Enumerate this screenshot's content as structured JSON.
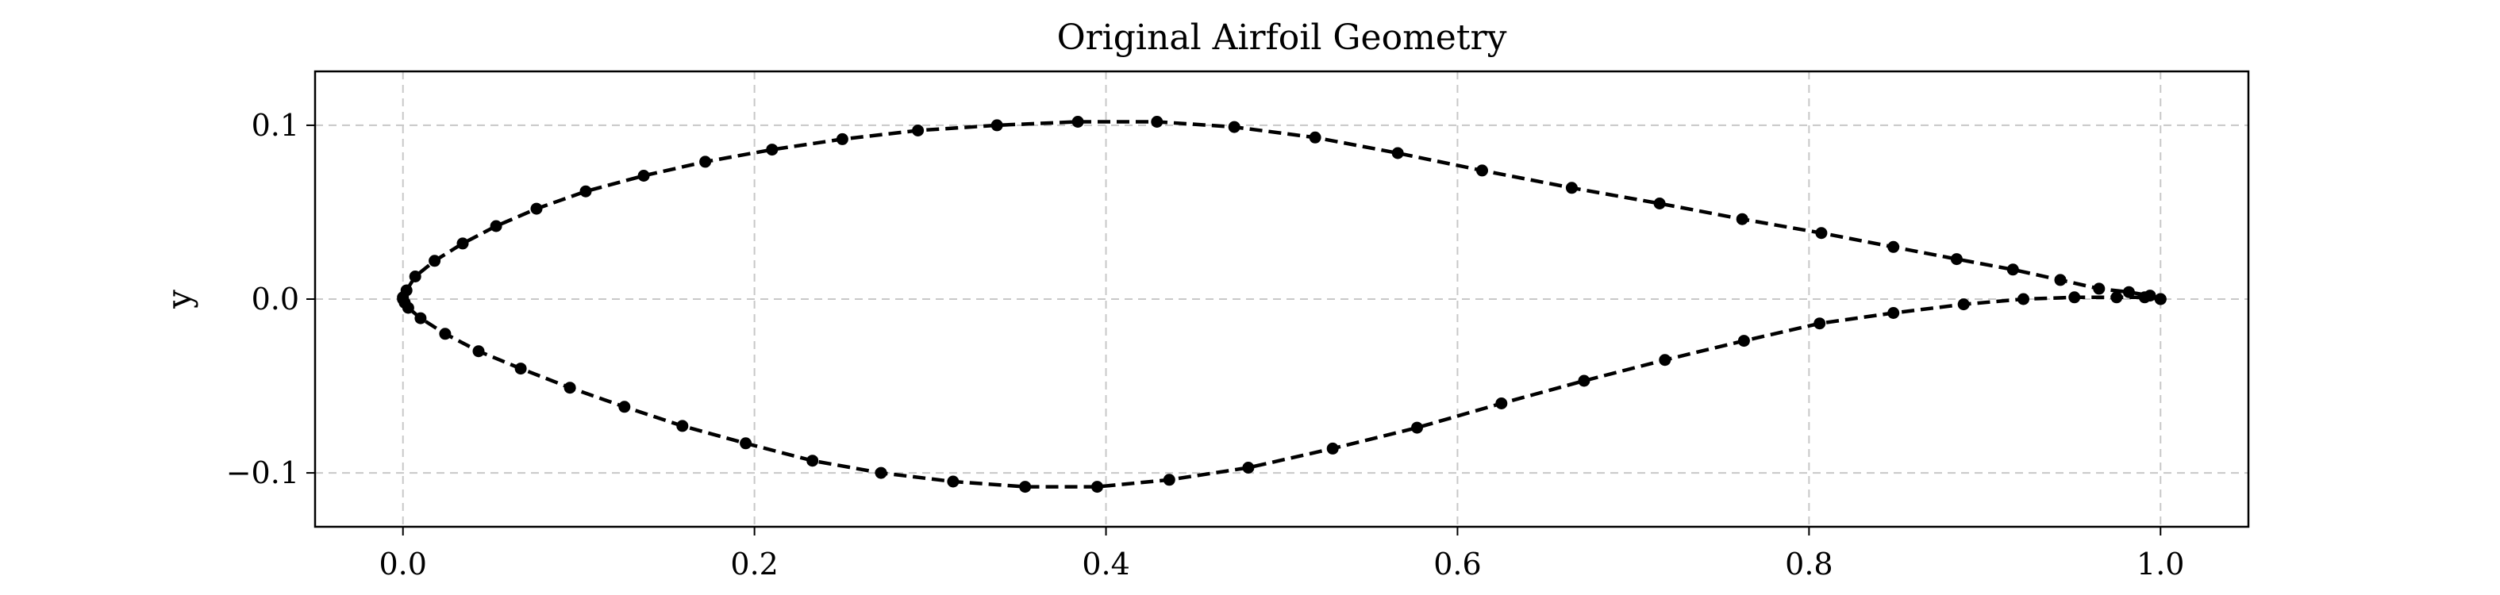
{
  "chart_data": {
    "type": "line",
    "title": "Original Airfoil Geometry",
    "xlabel": "",
    "ylabel": "y",
    "xlim": [
      -0.05,
      1.05
    ],
    "ylim": [
      -0.131,
      0.131
    ],
    "xticks": [
      0.0,
      0.2,
      0.4,
      0.6,
      0.8,
      1.0
    ],
    "xtick_labels": [
      "0.0",
      "0.2",
      "0.4",
      "0.6",
      "0.8",
      "1.0"
    ],
    "yticks": [
      -0.1,
      0.0,
      0.1
    ],
    "ytick_labels": [
      "−0.1",
      "0.0",
      "0.1"
    ],
    "grid": true,
    "line_style": "dashed",
    "marker": "circle",
    "color": "#000000",
    "series": [
      {
        "points": [
          [
            1.0,
            0.0
          ],
          [
            0.994,
            0.002
          ],
          [
            0.982,
            0.004
          ],
          [
            0.965,
            0.006
          ],
          [
            0.943,
            0.011
          ],
          [
            0.916,
            0.017
          ],
          [
            0.884,
            0.023
          ],
          [
            0.848,
            0.03
          ],
          [
            0.807,
            0.038
          ],
          [
            0.762,
            0.046
          ],
          [
            0.715,
            0.055
          ],
          [
            0.665,
            0.064
          ],
          [
            0.614,
            0.074
          ],
          [
            0.566,
            0.084
          ],
          [
            0.519,
            0.093
          ],
          [
            0.473,
            0.099
          ],
          [
            0.429,
            0.102
          ],
          [
            0.384,
            0.102
          ],
          [
            0.338,
            0.1
          ],
          [
            0.293,
            0.097
          ],
          [
            0.25,
            0.092
          ],
          [
            0.21,
            0.086
          ],
          [
            0.172,
            0.079
          ],
          [
            0.137,
            0.071
          ],
          [
            0.104,
            0.062
          ],
          [
            0.076,
            0.052
          ],
          [
            0.053,
            0.042
          ],
          [
            0.034,
            0.032
          ],
          [
            0.018,
            0.022
          ],
          [
            0.007,
            0.013
          ],
          [
            0.002,
            0.005
          ],
          [
            0.0,
            0.001
          ],
          [
            0.0,
            0.0
          ],
          [
            0.001,
            -0.002
          ],
          [
            0.003,
            -0.005
          ],
          [
            0.01,
            -0.011
          ],
          [
            0.024,
            -0.02
          ],
          [
            0.043,
            -0.03
          ],
          [
            0.067,
            -0.04
          ],
          [
            0.095,
            -0.051
          ],
          [
            0.126,
            -0.062
          ],
          [
            0.159,
            -0.073
          ],
          [
            0.195,
            -0.083
          ],
          [
            0.233,
            -0.093
          ],
          [
            0.272,
            -0.1
          ],
          [
            0.313,
            -0.105
          ],
          [
            0.354,
            -0.108
          ],
          [
            0.395,
            -0.108
          ],
          [
            0.436,
            -0.104
          ],
          [
            0.481,
            -0.097
          ],
          [
            0.529,
            -0.086
          ],
          [
            0.577,
            -0.074
          ],
          [
            0.625,
            -0.06
          ],
          [
            0.672,
            -0.047
          ],
          [
            0.718,
            -0.035
          ],
          [
            0.763,
            -0.024
          ],
          [
            0.806,
            -0.014
          ],
          [
            0.848,
            -0.008
          ],
          [
            0.888,
            -0.003
          ],
          [
            0.922,
            0.0
          ],
          [
            0.951,
            0.001
          ],
          [
            0.975,
            0.001
          ],
          [
            0.991,
            0.001
          ],
          [
            1.0,
            0.0
          ]
        ]
      }
    ]
  }
}
